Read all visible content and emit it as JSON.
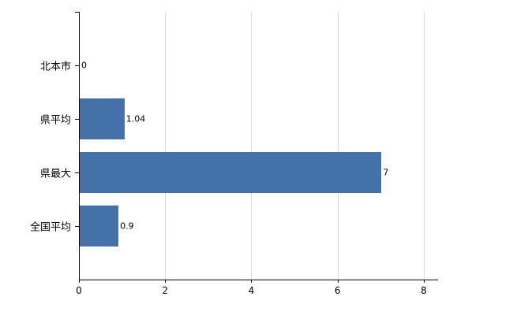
{
  "chart_data": {
    "type": "bar",
    "orientation": "horizontal",
    "title": "",
    "xlabel": "",
    "ylabel": "",
    "categories": [
      "北本市",
      "県平均",
      "県最大",
      "全国平均"
    ],
    "values": [
      0,
      1.04,
      7,
      0.9
    ],
    "value_labels": [
      "0",
      "1.04",
      "7",
      "0.9"
    ],
    "xlim": [
      0,
      8.33
    ],
    "xticks": [
      0,
      2,
      4,
      6,
      8
    ],
    "xtick_labels": [
      "0",
      "2",
      "4",
      "6",
      "8"
    ],
    "grid": true,
    "legend": "none",
    "bar_color": "#4472a8",
    "gridline_color": "#d9d9d9",
    "axis_color": "#000000"
  }
}
